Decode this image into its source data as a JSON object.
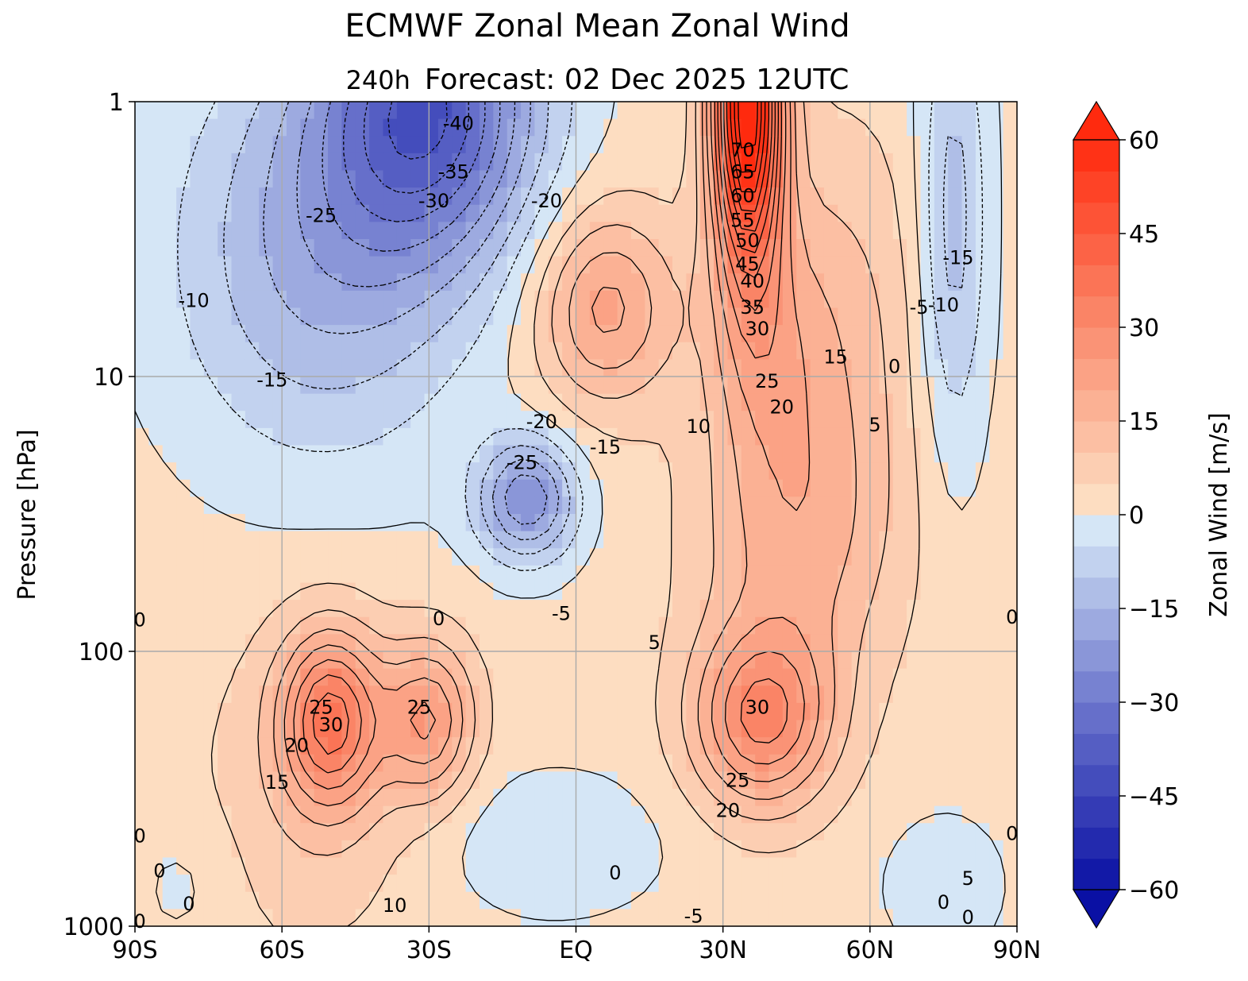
{
  "chart_data": {
    "type": "contour",
    "title": "ECMWF Zonal Mean Zonal Wind",
    "subtitle_lead": "240h",
    "subtitle": "Forecast:  02 Dec 2025  12UTC",
    "xlabel": "",
    "ylabel": "Pressure [hPa]",
    "xlim": [
      -90,
      90
    ],
    "ylim": [
      1000,
      1
    ],
    "yscale": "log",
    "x_ticks": [
      -90,
      -60,
      -30,
      0,
      30,
      60,
      90
    ],
    "x_tick_labels": [
      "90S",
      "60S",
      "30S",
      "EQ",
      "30N",
      "60N",
      "90N"
    ],
    "y_ticks": [
      1000,
      100,
      10,
      1
    ],
    "y_tick_labels": [
      "1000",
      "100",
      "10",
      "1"
    ],
    "grid": true,
    "colorbar": {
      "label": "Zonal Wind [m/s]",
      "range": [
        -60,
        60
      ],
      "step": 5,
      "extend": "both",
      "ticks": [
        -60,
        -45,
        -30,
        -15,
        0,
        15,
        30,
        45,
        60
      ],
      "tick_labels": [
        "−60",
        "−45",
        "−30",
        "−15",
        "0",
        "15",
        "30",
        "45",
        "60"
      ]
    },
    "contour_labels": [
      {
        "text": "-40",
        "lat": -24,
        "p": 1.2
      },
      {
        "text": "-35",
        "lat": -25,
        "p": 1.8
      },
      {
        "text": "-30",
        "lat": -29,
        "p": 2.3
      },
      {
        "text": "-25",
        "lat": -52,
        "p": 2.6
      },
      {
        "text": "-20",
        "lat": -6,
        "p": 2.3
      },
      {
        "text": "-10",
        "lat": -78,
        "p": 5.3
      },
      {
        "text": "-15",
        "lat": -62,
        "p": 10.3
      },
      {
        "text": "-20",
        "lat": -7,
        "p": 14.6
      },
      {
        "text": "-25",
        "lat": -11,
        "p": 20.6
      },
      {
        "text": "-15",
        "lat": 6,
        "p": 18.1
      },
      {
        "text": "0",
        "lat": -28,
        "p": 76
      },
      {
        "text": "-5",
        "lat": -3,
        "p": 73
      },
      {
        "text": "5",
        "lat": 16,
        "p": 93
      },
      {
        "text": "-15",
        "lat": 78,
        "p": 3.7
      },
      {
        "text": "-5",
        "lat": 70,
        "p": 5.6
      },
      {
        "text": "-10",
        "lat": 75,
        "p": 5.5
      },
      {
        "text": "0",
        "lat": 65,
        "p": 9.2
      },
      {
        "text": "70",
        "lat": 34,
        "p": 1.5
      },
      {
        "text": "65",
        "lat": 34,
        "p": 1.8
      },
      {
        "text": "60",
        "lat": 34,
        "p": 2.2
      },
      {
        "text": "55",
        "lat": 34,
        "p": 2.7
      },
      {
        "text": "50",
        "lat": 35,
        "p": 3.2
      },
      {
        "text": "45",
        "lat": 35,
        "p": 3.9
      },
      {
        "text": "40",
        "lat": 36,
        "p": 4.5
      },
      {
        "text": "35",
        "lat": 36,
        "p": 5.6
      },
      {
        "text": "30",
        "lat": 37,
        "p": 6.7
      },
      {
        "text": "15",
        "lat": 53,
        "p": 8.5
      },
      {
        "text": "25",
        "lat": 39,
        "p": 10.4
      },
      {
        "text": "20",
        "lat": 42,
        "p": 12.9
      },
      {
        "text": "10",
        "lat": 25,
        "p": 15.2
      },
      {
        "text": "5",
        "lat": 61,
        "p": 15.0
      },
      {
        "text": "25",
        "lat": -52,
        "p": 160
      },
      {
        "text": "30",
        "lat": -50,
        "p": 185
      },
      {
        "text": "20",
        "lat": -57,
        "p": 220
      },
      {
        "text": "15",
        "lat": -61,
        "p": 300
      },
      {
        "text": "25",
        "lat": -32,
        "p": 160
      },
      {
        "text": "30",
        "lat": 37,
        "p": 160
      },
      {
        "text": "25",
        "lat": 33,
        "p": 295
      },
      {
        "text": "20",
        "lat": 31,
        "p": 380
      },
      {
        "text": "10",
        "lat": -37,
        "p": 840
      },
      {
        "text": "0",
        "lat": 8,
        "p": 640
      },
      {
        "text": "-5",
        "lat": 24,
        "p": 920
      },
      {
        "text": "5",
        "lat": 80,
        "p": 670
      },
      {
        "text": "0",
        "lat": 75,
        "p": 820
      },
      {
        "text": "0",
        "lat": 80,
        "p": 930
      },
      {
        "text": "0",
        "lat": 89,
        "p": 460
      },
      {
        "text": "0",
        "lat": 89,
        "p": 75
      },
      {
        "text": "0",
        "lat": -89,
        "p": 77
      },
      {
        "text": "0",
        "lat": -89,
        "p": 470
      },
      {
        "text": "0",
        "lat": -85,
        "p": 630
      },
      {
        "text": "0",
        "lat": -79,
        "p": 830
      },
      {
        "text": "0",
        "lat": -89,
        "p": 960
      }
    ]
  }
}
